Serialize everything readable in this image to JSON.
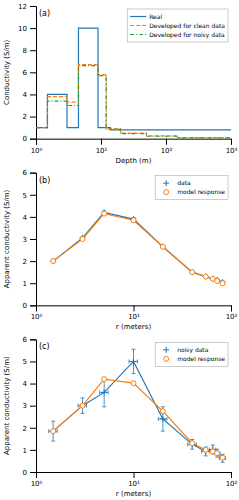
{
  "chart_data": [
    {
      "type": "line",
      "log": "x",
      "annotations": [
        "(a)"
      ],
      "x_label": "Depth (m)",
      "y_label": "Conductivity (S/m)",
      "xlim": [
        1,
        1000
      ],
      "ylim": [
        0,
        12
      ],
      "xticks": [
        {
          "value": 1,
          "label": "10⁰"
        },
        {
          "value": 10,
          "label": "10¹"
        },
        {
          "value": 100,
          "label": "10²"
        },
        {
          "value": 1000,
          "label": "10³"
        }
      ],
      "yticks": [
        0,
        2,
        4,
        6,
        8,
        10,
        12
      ],
      "legend": "upper right",
      "series": [
        {
          "name": "Real",
          "line_style": "solid",
          "x": [
            1,
            1.5,
            1.5,
            3,
            3,
            4.5,
            4.5,
            9,
            9,
            14,
            14,
            1000
          ],
          "values": [
            1,
            1,
            4,
            4,
            1,
            1,
            10,
            10,
            1,
            1,
            0.8,
            0.8
          ]
        },
        {
          "name": "Developed for clean data",
          "line_style": "dashed",
          "x": [
            1,
            1.5,
            1.5,
            3,
            3,
            4.5,
            4.5,
            9,
            9,
            12,
            12,
            20,
            20,
            50,
            50,
            150,
            150,
            1000
          ],
          "values": [
            1,
            1,
            3.8,
            3.8,
            3.3,
            3.3,
            6.7,
            6.7,
            5.8,
            5.8,
            0.9,
            0.9,
            0.5,
            0.5,
            0.25,
            0.25,
            0.1,
            0.1
          ]
        },
        {
          "name": "Developed for noisy data",
          "line_style": "dashdot",
          "x": [
            1,
            1.5,
            1.5,
            3,
            3,
            4.5,
            4.5,
            9,
            9,
            12,
            12,
            20,
            20,
            50,
            50,
            150,
            150,
            1000
          ],
          "values": [
            1,
            1,
            3.4,
            3.4,
            3.0,
            3.0,
            6.6,
            6.6,
            5.7,
            5.7,
            0.85,
            0.85,
            0.45,
            0.45,
            0.22,
            0.22,
            0.08,
            0.08
          ]
        }
      ]
    },
    {
      "type": "line",
      "log": "x",
      "annotations": [
        "(b)"
      ],
      "x_label": "r (meters)",
      "y_label": "Apparent conductivity (S/m)",
      "xlim": [
        1,
        100
      ],
      "ylim": [
        0,
        6
      ],
      "xticks": [
        {
          "value": 1,
          "label": "10⁰"
        },
        {
          "value": 10,
          "label": "10¹"
        },
        {
          "value": 100,
          "label": "10²"
        }
      ],
      "yticks": [
        0,
        1,
        2,
        3,
        4,
        5,
        6
      ],
      "legend": "upper right",
      "x": [
        1.5,
        3.0,
        5.0,
        10.0,
        20.0,
        40.0,
        55.0,
        65.0,
        72.0,
        82.0
      ],
      "series": [
        {
          "name": "data",
          "marker": "plus",
          "line_style": "solid",
          "values": [
            2.0,
            3.05,
            4.2,
            3.9,
            2.65,
            1.5,
            1.3,
            1.2,
            1.15,
            1.05
          ],
          "error": [
            0.04,
            0.07,
            0.07,
            0.07,
            0.07,
            0.06,
            0.05,
            0.05,
            0.05,
            0.05
          ]
        },
        {
          "name": "model response",
          "marker": "circle",
          "line_style": "solid",
          "values": [
            2.0,
            3.0,
            4.15,
            3.85,
            2.65,
            1.5,
            1.3,
            1.2,
            1.1,
            1.0
          ]
        }
      ]
    },
    {
      "type": "line",
      "log": "x",
      "annotations": [
        "(c)"
      ],
      "x_label": "r (meters)",
      "y_label": "Apparent conductivity (S/m)",
      "xlim": [
        1,
        100
      ],
      "ylim": [
        0,
        6
      ],
      "xticks": [
        {
          "value": 1,
          "label": "10⁰"
        },
        {
          "value": 10,
          "label": "10¹"
        },
        {
          "value": 100,
          "label": "10²"
        }
      ],
      "yticks": [
        0,
        1,
        2,
        3,
        4,
        5,
        6
      ],
      "legend": "upper right",
      "x": [
        1.5,
        3.0,
        5.0,
        10.0,
        20.0,
        40.0,
        55.0,
        65.0,
        72.0,
        82.0
      ],
      "series": [
        {
          "name": "noisy data",
          "marker": "plus",
          "line_style": "solid",
          "values": [
            1.85,
            3.0,
            3.6,
            5.0,
            2.4,
            1.25,
            0.93,
            1.02,
            0.85,
            0.62
          ],
          "x_error": [
            0.15,
            0.3,
            0.5,
            1.0,
            2.0,
            4.0,
            5.0,
            5.0,
            5.0,
            6.0
          ],
          "error": [
            0.45,
            0.35,
            0.65,
            0.55,
            0.55,
            0.22,
            0.2,
            0.2,
            0.18,
            0.18
          ]
        },
        {
          "name": "model response",
          "marker": "circle",
          "line_style": "solid",
          "values": [
            1.85,
            3.0,
            4.2,
            4.02,
            2.75,
            1.3,
            1.0,
            0.93,
            0.85,
            0.65
          ]
        }
      ]
    }
  ]
}
